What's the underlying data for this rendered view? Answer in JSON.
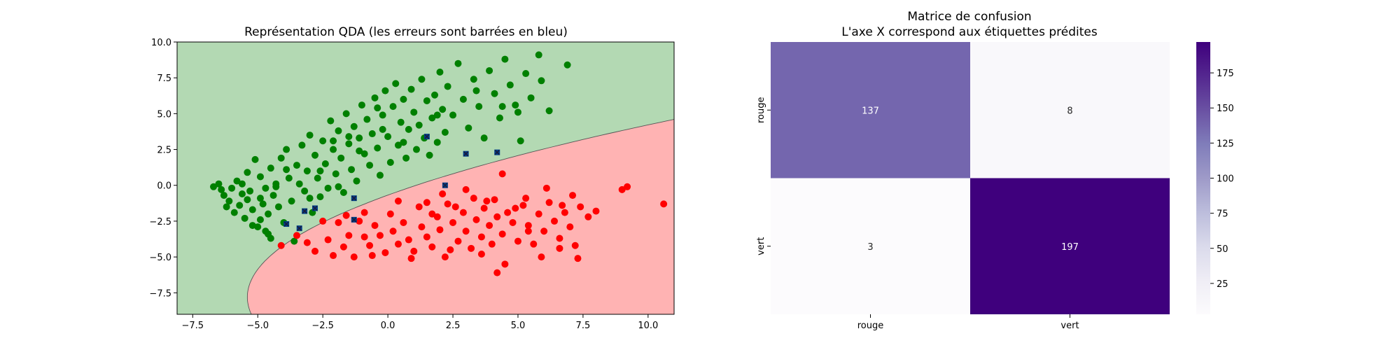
{
  "chart_data": [
    {
      "type": "scatter",
      "title": "Représentation QDA (les erreurs sont barrées en bleu)",
      "xlabel": "",
      "ylabel": "",
      "xlim": [
        -8.1,
        11.0
      ],
      "ylim": [
        -9.0,
        10.0
      ],
      "xticks": [
        -7.5,
        -5.0,
        -2.5,
        0.0,
        2.5,
        5.0,
        7.5,
        10.0
      ],
      "xtick_labels": [
        "−7.5",
        "−5.0",
        "−2.5",
        "0.0",
        "2.5",
        "5.0",
        "7.5",
        "10.0"
      ],
      "yticks": [
        -7.5,
        -5.0,
        -2.5,
        0.0,
        2.5,
        5.0,
        7.5,
        10.0
      ],
      "ytick_labels": [
        "−7.5",
        "−5.0",
        "−2.5",
        "0.0",
        "2.5",
        "5.0",
        "7.5",
        "10.0"
      ],
      "regions": {
        "upper_color": "#b3d9b3",
        "lower_color": "#ffb3b3"
      },
      "boundary": {
        "vertex": [
          -5.4,
          -7.8
        ],
        "pass_through": [
          11.0,
          4.6
        ],
        "color": "#555555"
      },
      "series": [
        {
          "name": "vert",
          "color": "#008000",
          "points": [
            [
              -6.7,
              -0.1
            ],
            [
              -6.5,
              0.1
            ],
            [
              -6.4,
              -0.3
            ],
            [
              -6.3,
              -0.7
            ],
            [
              -6.1,
              -1.1
            ],
            [
              -6.0,
              -0.2
            ],
            [
              -5.9,
              -1.9
            ],
            [
              -5.8,
              0.3
            ],
            [
              -5.7,
              -1.4
            ],
            [
              -5.6,
              -0.6
            ],
            [
              -5.5,
              -2.3
            ],
            [
              -5.4,
              0.9
            ],
            [
              -5.4,
              -1.0
            ],
            [
              -5.3,
              -0.4
            ],
            [
              -5.2,
              -1.7
            ],
            [
              -5.1,
              1.8
            ],
            [
              -5.0,
              -2.9
            ],
            [
              -4.9,
              0.6
            ],
            [
              -4.9,
              -0.9
            ],
            [
              -4.8,
              -1.3
            ],
            [
              -4.7,
              -0.2
            ],
            [
              -4.6,
              -2.0
            ],
            [
              -4.6,
              -3.4
            ],
            [
              -4.5,
              1.2
            ],
            [
              -4.4,
              -0.7
            ],
            [
              -4.3,
              0.1
            ],
            [
              -4.2,
              -1.5
            ],
            [
              -4.1,
              1.9
            ],
            [
              -4.0,
              -2.6
            ],
            [
              -3.9,
              2.5
            ],
            [
              -3.8,
              0.5
            ],
            [
              -3.7,
              -1.1
            ],
            [
              -3.6,
              -3.9
            ],
            [
              -3.5,
              1.4
            ],
            [
              -3.4,
              0.1
            ],
            [
              -3.3,
              2.8
            ],
            [
              -3.2,
              -0.4
            ],
            [
              -3.1,
              1.0
            ],
            [
              -3.0,
              3.5
            ],
            [
              -2.9,
              -1.9
            ],
            [
              -2.8,
              2.1
            ],
            [
              -2.7,
              0.5
            ],
            [
              -2.6,
              -0.8
            ],
            [
              -2.5,
              3.1
            ],
            [
              -2.4,
              1.5
            ],
            [
              -2.3,
              -0.2
            ],
            [
              -2.2,
              4.5
            ],
            [
              -2.1,
              2.5
            ],
            [
              -2.0,
              0.8
            ],
            [
              -1.9,
              3.8
            ],
            [
              -1.8,
              1.9
            ],
            [
              -1.7,
              -0.5
            ],
            [
              -1.6,
              5.0
            ],
            [
              -1.5,
              2.9
            ],
            [
              -1.4,
              1.1
            ],
            [
              -1.3,
              4.1
            ],
            [
              -1.2,
              0.3
            ],
            [
              -1.1,
              3.3
            ],
            [
              -1.0,
              5.6
            ],
            [
              -0.9,
              2.2
            ],
            [
              -0.8,
              4.6
            ],
            [
              -0.7,
              1.4
            ],
            [
              -0.6,
              3.6
            ],
            [
              -0.5,
              6.1
            ],
            [
              -0.4,
              2.6
            ],
            [
              -0.3,
              0.7
            ],
            [
              -0.2,
              4.9
            ],
            [
              -0.1,
              6.6
            ],
            [
              0.0,
              3.4
            ],
            [
              0.1,
              1.6
            ],
            [
              0.2,
              5.5
            ],
            [
              0.3,
              7.1
            ],
            [
              0.4,
              2.8
            ],
            [
              0.5,
              4.4
            ],
            [
              0.6,
              6.0
            ],
            [
              0.7,
              1.9
            ],
            [
              0.8,
              3.9
            ],
            [
              0.9,
              6.7
            ],
            [
              1.0,
              5.1
            ],
            [
              1.1,
              2.5
            ],
            [
              1.2,
              4.2
            ],
            [
              1.3,
              7.4
            ],
            [
              1.4,
              3.3
            ],
            [
              1.5,
              5.9
            ],
            [
              1.6,
              2.1
            ],
            [
              1.7,
              4.7
            ],
            [
              1.8,
              6.3
            ],
            [
              1.9,
              3.0
            ],
            [
              2.0,
              7.9
            ],
            [
              2.1,
              5.3
            ],
            [
              2.2,
              3.7
            ],
            [
              2.3,
              6.9
            ],
            [
              2.5,
              4.9
            ],
            [
              2.7,
              8.5
            ],
            [
              2.9,
              6.0
            ],
            [
              3.1,
              4.0
            ],
            [
              3.3,
              7.4
            ],
            [
              3.5,
              5.5
            ],
            [
              3.7,
              3.3
            ],
            [
              3.9,
              8.0
            ],
            [
              4.1,
              6.4
            ],
            [
              4.3,
              4.7
            ],
            [
              4.5,
              8.8
            ],
            [
              4.7,
              7.0
            ],
            [
              4.9,
              5.6
            ],
            [
              5.1,
              3.1
            ],
            [
              5.3,
              7.8
            ],
            [
              5.5,
              6.1
            ],
            [
              5.8,
              9.1
            ],
            [
              5.9,
              7.3
            ],
            [
              6.2,
              5.2
            ],
            [
              6.9,
              8.4
            ],
            [
              -3.0,
              -0.9
            ],
            [
              -2.6,
              1.0
            ],
            [
              -1.9,
              -0.1
            ],
            [
              -1.5,
              3.4
            ],
            [
              -4.9,
              -2.4
            ],
            [
              -5.6,
              0.1
            ],
            [
              -6.2,
              -1.5
            ],
            [
              -4.3,
              -0.1
            ],
            [
              -3.9,
              1.1
            ],
            [
              -2.1,
              3.1
            ],
            [
              -0.4,
              5.4
            ],
            [
              0.6,
              3.0
            ],
            [
              1.9,
              4.9
            ],
            [
              3.4,
              6.6
            ],
            [
              4.4,
              5.5
            ],
            [
              5.0,
              5.1
            ],
            [
              -1.1,
              2.4
            ],
            [
              -0.2,
              3.9
            ],
            [
              -5.2,
              -2.8
            ],
            [
              -4.7,
              -3.2
            ],
            [
              -4.5,
              -3.7
            ]
          ]
        },
        {
          "name": "rouge",
          "color": "#ff0000",
          "points": [
            [
              -4.1,
              -4.2
            ],
            [
              -3.5,
              -3.5
            ],
            [
              -3.1,
              -4.0
            ],
            [
              -2.8,
              -4.6
            ],
            [
              -2.5,
              -2.5
            ],
            [
              -2.3,
              -3.8
            ],
            [
              -2.1,
              -4.9
            ],
            [
              -1.9,
              -2.6
            ],
            [
              -1.7,
              -4.3
            ],
            [
              -1.5,
              -3.5
            ],
            [
              -1.3,
              -5.0
            ],
            [
              -1.1,
              -2.5
            ],
            [
              -0.9,
              -3.6
            ],
            [
              -0.7,
              -4.2
            ],
            [
              -0.5,
              -2.8
            ],
            [
              -0.3,
              -3.5
            ],
            [
              -0.1,
              -4.7
            ],
            [
              0.1,
              -2.0
            ],
            [
              0.2,
              -3.2
            ],
            [
              0.4,
              -4.1
            ],
            [
              0.6,
              -2.6
            ],
            [
              0.8,
              -3.8
            ],
            [
              1.0,
              -4.6
            ],
            [
              1.2,
              -1.5
            ],
            [
              1.3,
              -2.9
            ],
            [
              1.5,
              -3.6
            ],
            [
              1.7,
              -4.3
            ],
            [
              1.9,
              -2.2
            ],
            [
              2.0,
              -3.1
            ],
            [
              2.2,
              -5.0
            ],
            [
              2.3,
              -1.3
            ],
            [
              2.5,
              -2.6
            ],
            [
              2.7,
              -3.9
            ],
            [
              2.9,
              -1.9
            ],
            [
              3.0,
              -3.2
            ],
            [
              3.2,
              -4.4
            ],
            [
              3.3,
              -0.9
            ],
            [
              3.4,
              -2.4
            ],
            [
              3.6,
              -3.6
            ],
            [
              3.7,
              -1.6
            ],
            [
              3.9,
              -2.8
            ],
            [
              4.0,
              -4.1
            ],
            [
              4.1,
              -1.0
            ],
            [
              4.2,
              -2.2
            ],
            [
              4.4,
              -3.4
            ],
            [
              4.5,
              -5.5
            ],
            [
              4.6,
              -1.9
            ],
            [
              4.8,
              -2.6
            ],
            [
              5.0,
              -3.9
            ],
            [
              5.2,
              -1.4
            ],
            [
              5.4,
              -2.8
            ],
            [
              5.6,
              -4.1
            ],
            [
              5.8,
              -2.0
            ],
            [
              6.0,
              -3.2
            ],
            [
              6.2,
              -1.2
            ],
            [
              6.4,
              -2.5
            ],
            [
              6.6,
              -3.7
            ],
            [
              6.8,
              -1.9
            ],
            [
              7.0,
              -2.9
            ],
            [
              7.2,
              -4.2
            ],
            [
              7.4,
              -1.5
            ],
            [
              7.7,
              -2.2
            ],
            [
              8.0,
              -1.8
            ],
            [
              9.0,
              -0.3
            ],
            [
              9.2,
              -0.1
            ],
            [
              10.6,
              -1.3
            ],
            [
              4.2,
              -6.1
            ],
            [
              5.9,
              -5.0
            ],
            [
              7.3,
              -5.1
            ],
            [
              -0.9,
              -1.9
            ],
            [
              0.4,
              -1.1
            ],
            [
              2.1,
              -0.6
            ],
            [
              3.0,
              -0.3
            ],
            [
              4.4,
              0.8
            ],
            [
              6.1,
              -0.2
            ],
            [
              7.1,
              -0.7
            ],
            [
              1.7,
              -2.0
            ],
            [
              2.6,
              -1.5
            ],
            [
              3.8,
              -1.1
            ],
            [
              5.3,
              -0.9
            ],
            [
              6.7,
              -1.4
            ],
            [
              -1.6,
              -2.1
            ],
            [
              -0.6,
              -4.9
            ],
            [
              0.9,
              -5.1
            ],
            [
              2.4,
              -4.5
            ],
            [
              3.6,
              -4.8
            ],
            [
              5.4,
              -3.2
            ],
            [
              6.6,
              -4.4
            ],
            [
              1.5,
              -1.2
            ],
            [
              4.9,
              -1.6
            ]
          ]
        },
        {
          "name": "erreurs",
          "color": "#003f8a",
          "marker": "x",
          "points": [
            [
              -3.9,
              -2.7
            ],
            [
              -3.2,
              -1.8
            ],
            [
              -2.8,
              -1.6
            ],
            [
              -1.3,
              -0.9
            ],
            [
              1.5,
              3.4
            ],
            [
              3.0,
              2.2
            ],
            [
              4.2,
              2.3
            ],
            [
              -1.3,
              -2.4
            ],
            [
              -3.4,
              -3.0
            ],
            [
              2.2,
              0.0
            ]
          ]
        }
      ]
    },
    {
      "type": "heatmap",
      "title_line1": "Matrice de confusion",
      "title_line2": "L'axe X correspond aux étiquettes prédites",
      "xlabels": [
        "rouge",
        "vert"
      ],
      "ylabels": [
        "rouge",
        "vert"
      ],
      "values": [
        [
          137,
          8
        ],
        [
          3,
          197
        ]
      ],
      "colormap": "Purples",
      "vmin": 3,
      "vmax": 197,
      "colorbar_ticks": [
        25,
        50,
        75,
        100,
        125,
        150,
        175
      ]
    }
  ]
}
